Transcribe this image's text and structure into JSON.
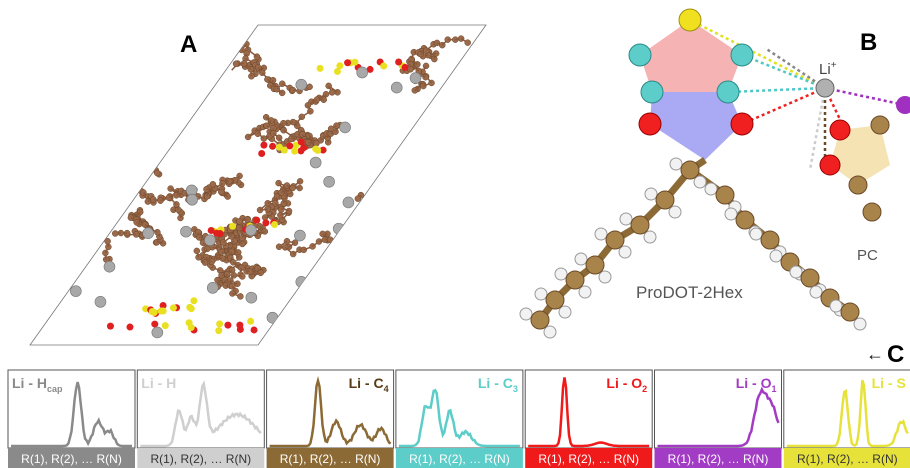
{
  "panel_a": {
    "label": "A"
  },
  "panel_b": {
    "label": "B",
    "ion": "Li",
    "ion_charge": "+",
    "molecule": "ProDOT-2Hex",
    "solvent": "PC"
  },
  "panel_c": {
    "pointer": "←",
    "label": "C",
    "panels": [
      {
        "label": "Li - H",
        "sub": "cap",
        "axis_label": "R(1), R(2), … R(N)",
        "color": "#8a8a8a"
      },
      {
        "label": "Li - H",
        "sub": "",
        "axis_label": "R(1), R(2), … R(N)",
        "color": "#cfcfcf"
      },
      {
        "label": "Li - C",
        "sub": "4",
        "axis_label": "R(1), R(2), … R(N)",
        "color": "#8c6a35"
      },
      {
        "label": "Li - C",
        "sub": "3",
        "axis_label": "R(1), R(2), … R(N)",
        "color": "#5ccdc8"
      },
      {
        "label": "Li - O",
        "sub": "2",
        "axis_label": "R(1), R(2), … R(N)",
        "color": "#f01a1a"
      },
      {
        "label": "Li - O",
        "sub": "1",
        "axis_label": "R(1), R(2), … R(N)",
        "color": "#a23cc4"
      },
      {
        "label": "Li - S",
        "sub": "",
        "axis_label": "R(1), R(2), … R(N)",
        "color": "#e6e23a"
      }
    ]
  }
}
